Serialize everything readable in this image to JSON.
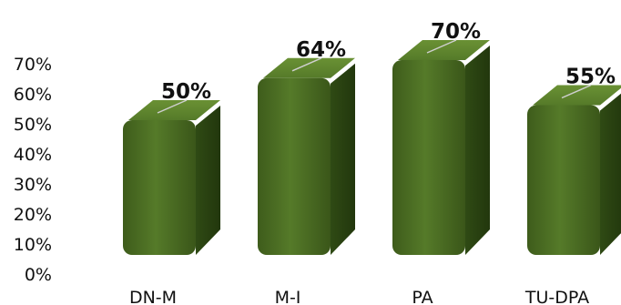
{
  "chart_data": {
    "type": "bar",
    "title": "",
    "xlabel": "",
    "ylabel": "",
    "categories": [
      "DN-M",
      "M-I",
      "PA",
      "TU-DPA"
    ],
    "values": [
      50,
      64,
      70,
      55
    ],
    "data_labels": [
      "50%",
      "64%",
      "70%",
      "55%"
    ],
    "y_ticks": [
      "0%",
      "10%",
      "20%",
      "30%",
      "40%",
      "50%",
      "60%",
      "70%"
    ],
    "ylim": [
      0,
      70
    ],
    "grid": false,
    "legend": "none",
    "colors": {
      "bar_front": "#4a6a22",
      "bar_front_light": "#5b7f2c",
      "bar_side": "#2c4512",
      "bar_top": "#62872f",
      "leader_line": "#cfcfcf"
    }
  }
}
